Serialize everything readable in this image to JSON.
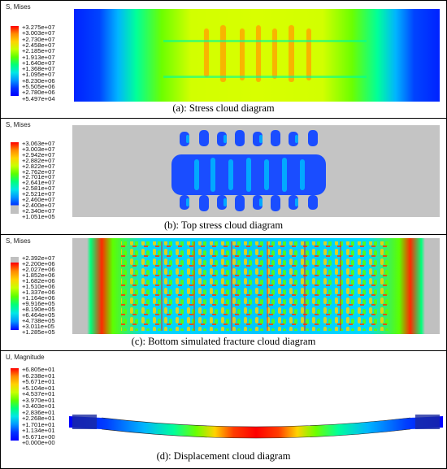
{
  "panels": [
    {
      "legend_title": "S, Mises",
      "legend_values": [
        "+3.275e+07",
        "+3.003e+07",
        "+2.730e+07",
        "+2.458e+07",
        "+2.185e+07",
        "+1.913e+07",
        "+1.640e+07",
        "+1.368e+07",
        "+1.095e+07",
        "+8.230e+06",
        "+5.505e+06",
        "+2.780e+06",
        "+5.497e+04"
      ],
      "caption": "(a): Stress cloud diagram"
    },
    {
      "legend_title": "S, Mises",
      "legend_values": [
        "+3.063e+07",
        "+3.003e+07",
        "+2.942e+07",
        "+2.882e+07",
        "+2.822e+07",
        "+2.762e+07",
        "+2.701e+07",
        "+2.641e+07",
        "+2.581e+07",
        "+2.521e+07",
        "+2.460e+07",
        "+2.400e+07",
        "+2.340e+07",
        "+1.051e+05"
      ],
      "caption": "(b): Top stress cloud diagram"
    },
    {
      "legend_title": "S, Mises",
      "legend_values": [
        "+2.392e+07",
        "+2.200e+06",
        "+2.027e+06",
        "+1.852e+06",
        "+1.682e+06",
        "+1.510e+06",
        "+1.337e+06",
        "+1.164e+06",
        "+9.916e+05",
        "+8.190e+05",
        "+6.464e+05",
        "+4.738e+05",
        "+3.011e+05",
        "+1.285e+05"
      ],
      "caption": "(c): Bottom simulated fracture cloud diagram"
    },
    {
      "legend_title": "U, Magnitude",
      "legend_values": [
        "+6.805e+01",
        "+6.238e+01",
        "+5.671e+01",
        "+5.104e+01",
        "+4.537e+01",
        "+3.970e+01",
        "+3.403e+01",
        "+2.836e+01",
        "+2.268e+01",
        "+1.701e+01",
        "+1.134e+01",
        "+5.671e+00",
        "+0.000e+00"
      ],
      "caption": "(d): Displacement cloud diagram"
    }
  ],
  "colors": {
    "contour_scale": [
      "#ff0000",
      "#ff5a00",
      "#ff9e00",
      "#ffd200",
      "#e8ff00",
      "#a8ff00",
      "#5cff00",
      "#00ff32",
      "#00ff9a",
      "#00e6e6",
      "#00a0ff",
      "#0050ff",
      "#0000ff"
    ],
    "grey": "#c0c0c0"
  }
}
